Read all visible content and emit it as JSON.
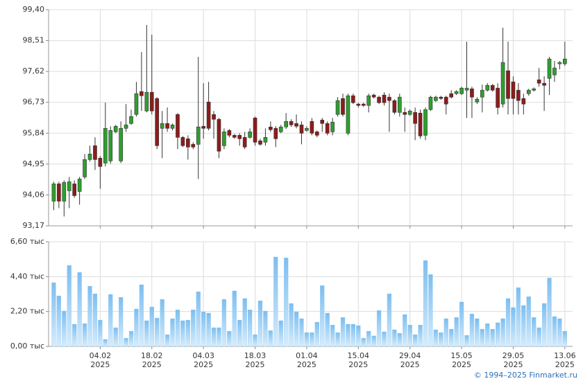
{
  "chart_data": [
    {
      "type": "candlestick",
      "categories": [
        null,
        null,
        null,
        null,
        null,
        null,
        null,
        null,
        null,
        null,
        null,
        null,
        null,
        null,
        null,
        null,
        null,
        null,
        null,
        null,
        null,
        null,
        null,
        null,
        null,
        null,
        null,
        null,
        null,
        null,
        null,
        null,
        null,
        null,
        null,
        null,
        null,
        null,
        null,
        null,
        null,
        null,
        null,
        null,
        null,
        null,
        null,
        null,
        null,
        null,
        null,
        null,
        null,
        null,
        null,
        null,
        null,
        null,
        null,
        null,
        null,
        null,
        null,
        null,
        null,
        null,
        null,
        null,
        null,
        null,
        null,
        null,
        null,
        null,
        null,
        null,
        null,
        null,
        null,
        null,
        null,
        null,
        null,
        null,
        null,
        null,
        null,
        null,
        null,
        null,
        null,
        null,
        null,
        null,
        null,
        null,
        null,
        null,
        null,
        null
      ],
      "open": [
        93.88,
        94.38,
        93.88,
        94.18,
        94.38,
        94.16,
        94.58,
        95.08,
        95.48,
        95.12,
        94.98,
        95.04,
        95.88,
        95.04,
        95.98,
        96.12,
        96.38,
        97.04,
        96.48,
        97.02,
        96.84,
        95.98,
        96.12,
        95.98,
        96.38,
        95.72,
        95.68,
        95.52,
        95.52,
        96.04,
        96.74,
        96.38,
        96.24,
        95.48,
        95.92,
        95.78,
        95.78,
        95.72,
        95.72,
        96.28,
        95.62,
        95.58,
        96.02,
        95.98,
        95.88,
        96.02,
        96.18,
        96.12,
        96.08,
        95.92,
        96.18,
        95.88,
        96.22,
        96.12,
        95.88,
        96.38,
        96.84,
        95.84,
        96.92,
        96.68,
        96.68,
        96.64,
        96.94,
        96.88,
        96.94,
        96.88,
        96.78,
        96.44,
        96.44,
        96.38,
        96.44,
        96.42,
        95.78,
        96.52,
        96.78,
        96.88,
        96.88,
        96.98,
        96.98,
        96.98,
        97.08,
        97.12,
        96.74,
        96.88,
        97.08,
        97.22,
        97.14,
        96.68,
        97.64,
        97.32,
        97.08,
        96.84,
        96.98,
        97.08,
        97.38,
        97.28,
        97.42,
        97.52,
        97.84,
        97.84
      ],
      "high": [
        94.44,
        94.44,
        94.48,
        94.58,
        94.48,
        94.58,
        95.24,
        95.48,
        95.72,
        95.18,
        96.72,
        96.04,
        96.08,
        96.18,
        96.68,
        96.52,
        97.32,
        98.18,
        98.96,
        98.68,
        96.88,
        96.48,
        96.58,
        96.12,
        96.42,
        95.76,
        95.78,
        95.58,
        98.04,
        97.28,
        97.32,
        96.48,
        96.28,
        95.98,
        95.96,
        95.82,
        95.84,
        95.88,
        95.98,
        96.32,
        95.68,
        95.98,
        96.18,
        96.04,
        96.08,
        96.42,
        96.24,
        96.38,
        96.18,
        96.04,
        96.28,
        95.92,
        96.28,
        96.18,
        96.28,
        96.88,
        96.98,
        96.98,
        96.98,
        96.72,
        96.72,
        96.98,
        96.98,
        96.92,
        97.02,
        96.98,
        96.82,
        96.98,
        96.58,
        96.52,
        96.58,
        96.52,
        96.58,
        96.92,
        96.92,
        96.92,
        96.92,
        97.08,
        97.08,
        97.18,
        98.48,
        97.18,
        96.88,
        97.24,
        97.28,
        97.26,
        97.28,
        98.88,
        98.48,
        97.48,
        97.28,
        96.98,
        97.12,
        97.16,
        97.72,
        97.48,
        98.04,
        97.92,
        97.92,
        98.48
      ],
      "low": [
        93.62,
        93.68,
        93.44,
        93.68,
        93.98,
        93.78,
        94.52,
        95.02,
        94.78,
        94.24,
        94.88,
        94.96,
        95.84,
        94.98,
        95.88,
        96.08,
        96.32,
        96.48,
        96.44,
        96.38,
        95.38,
        95.12,
        95.88,
        95.92,
        95.38,
        95.44,
        95.08,
        95.38,
        94.52,
        95.68,
        95.92,
        95.68,
        95.12,
        95.38,
        95.72,
        95.68,
        95.48,
        95.38,
        95.68,
        95.48,
        95.48,
        95.48,
        95.88,
        95.44,
        95.84,
        95.96,
        96.02,
        95.98,
        95.52,
        95.88,
        95.78,
        95.72,
        95.88,
        95.78,
        95.78,
        96.32,
        96.32,
        95.78,
        96.68,
        96.58,
        96.6,
        96.44,
        96.84,
        96.68,
        96.64,
        95.88,
        96.38,
        96.32,
        95.88,
        96.34,
        95.64,
        95.68,
        95.64,
        96.48,
        96.74,
        96.8,
        96.38,
        96.84,
        96.94,
        96.94,
        96.28,
        96.28,
        96.68,
        96.44,
        97.04,
        97.04,
        96.38,
        96.58,
        96.38,
        96.38,
        96.38,
        96.38,
        96.92,
        97.04,
        97.18,
        96.48,
        96.94,
        97.32,
        97.68,
        97.78
      ],
      "close": [
        94.38,
        93.88,
        94.42,
        94.44,
        94.04,
        94.52,
        95.08,
        95.24,
        95.08,
        94.88,
        95.98,
        95.92,
        96.04,
        95.98,
        96.08,
        96.32,
        96.98,
        96.92,
        97.02,
        96.48,
        95.48,
        96.12,
        95.98,
        96.08,
        95.72,
        95.48,
        95.44,
        95.44,
        96.02,
        95.98,
        95.98,
        96.24,
        95.32,
        95.88,
        95.78,
        95.72,
        95.68,
        95.44,
        95.88,
        95.58,
        95.52,
        95.72,
        95.94,
        95.68,
        96.02,
        96.18,
        96.08,
        96.04,
        95.84,
        95.98,
        95.84,
        95.78,
        96.12,
        95.84,
        96.16,
        96.78,
        96.38,
        96.92,
        96.72,
        96.64,
        96.64,
        96.92,
        96.88,
        96.72,
        96.72,
        96.78,
        96.44,
        96.88,
        96.38,
        96.48,
        96.12,
        95.76,
        96.52,
        96.88,
        96.88,
        96.84,
        96.68,
        96.88,
        97.04,
        97.14,
        97.14,
        96.88,
        96.82,
        97.08,
        97.22,
        97.08,
        96.58,
        97.88,
        96.84,
        96.84,
        96.78,
        96.68,
        97.08,
        97.12,
        97.28,
        97.22,
        97.98,
        97.72,
        97.88,
        97.98
      ],
      "up_color": "#2f9e2f",
      "down_color": "#8c1c1c",
      "xlim": [
        -1,
        100.5
      ],
      "xticks": [
        9,
        19,
        29,
        39,
        49,
        59,
        69,
        79,
        89,
        99
      ],
      "ylim": [
        93.17,
        99.4
      ],
      "yticks": [
        {
          "value": 93.17,
          "label": "93,17"
        },
        {
          "value": 94.06,
          "label": "94,06"
        },
        {
          "value": 94.95,
          "label": "94,95"
        },
        {
          "value": 95.84,
          "label": "95,84"
        },
        {
          "value": 96.73,
          "label": "96,73"
        },
        {
          "value": 97.62,
          "label": "97,62"
        },
        {
          "value": 98.51,
          "label": "98,51"
        },
        {
          "value": 99.4,
          "label": "99,40"
        }
      ],
      "grid": true
    },
    {
      "type": "bar",
      "categories": [
        null,
        null,
        null,
        null,
        null,
        null,
        null,
        null,
        null,
        null,
        null,
        null,
        null,
        null,
        null,
        null,
        null,
        null,
        null,
        null,
        null,
        null,
        null,
        null,
        null,
        null,
        null,
        null,
        null,
        null,
        null,
        null,
        null,
        null,
        null,
        null,
        null,
        null,
        null,
        null,
        null,
        null,
        null,
        null,
        null,
        null,
        null,
        null,
        null,
        null,
        null,
        null,
        null,
        null,
        null,
        null,
        null,
        null,
        null,
        null,
        null,
        null,
        null,
        null,
        null,
        null,
        null,
        null,
        null,
        null,
        null,
        null,
        null,
        null,
        null,
        null,
        null,
        null,
        null,
        null,
        null,
        null,
        null,
        null,
        null,
        null,
        null,
        null,
        null,
        null,
        null,
        null,
        null,
        null,
        null,
        null,
        null,
        null,
        null,
        null
      ],
      "values": [
        4.02,
        3.19,
        2.23,
        5.11,
        1.4,
        4.67,
        1.44,
        3.8,
        3.32,
        1.66,
        0.44,
        3.28,
        1.18,
        3.1,
        0.52,
        0.96,
        2.36,
        3.89,
        1.62,
        2.49,
        1.79,
        2.97,
        0.74,
        1.75,
        2.31,
        1.62,
        1.66,
        2.31,
        3.45,
        2.18,
        2.1,
        1.18,
        1.18,
        2.97,
        0.96,
        3.5,
        1.66,
        3.02,
        2.31,
        0.74,
        2.88,
        2.23,
        1.0,
        5.64,
        1.62,
        5.59,
        2.71,
        2.18,
        1.75,
        0.87,
        0.87,
        1.53,
        3.84,
        2.1,
        1.35,
        0.87,
        1.83,
        1.4,
        1.4,
        1.31,
        0.52,
        0.96,
        0.66,
        2.27,
        0.92,
        3.32,
        1.05,
        0.83,
        2.01,
        1.35,
        0.74,
        1.35,
        5.42,
        4.54,
        1.05,
        0.87,
        1.75,
        1.09,
        1.83,
        2.8,
        0.7,
        2.05,
        1.75,
        1.09,
        1.44,
        1.09,
        1.49,
        1.75,
        3.02,
        2.45,
        3.71,
        2.58,
        3.14,
        1.83,
        1.18,
        2.71,
        4.32,
        1.88,
        1.75,
        0.96
      ],
      "color": "#8ec8f2",
      "xlim": [
        -1,
        100.5
      ],
      "xticks": [
        {
          "value": 9,
          "label": "04.02\n2025"
        },
        {
          "value": 19,
          "label": "18.02\n2025"
        },
        {
          "value": 29,
          "label": "04.03\n2025"
        },
        {
          "value": 39,
          "label": "18.03\n2025"
        },
        {
          "value": 49,
          "label": "01.04\n2025"
        },
        {
          "value": 59,
          "label": "15.04\n2025"
        },
        {
          "value": 69,
          "label": "29.04\n2025"
        },
        {
          "value": 79,
          "label": "15.05\n2025"
        },
        {
          "value": 89,
          "label": "29.05\n2025"
        },
        {
          "value": 99,
          "label": "13.06\n2025"
        }
      ],
      "ylim": [
        0,
        6.6
      ],
      "yticks": [
        {
          "value": 0,
          "label": "0,00 тыс"
        },
        {
          "value": 2.2,
          "label": "2,20 тыс"
        },
        {
          "value": 4.4,
          "label": "4,40 тыс"
        },
        {
          "value": 6.6,
          "label": "6,60 тыс"
        }
      ],
      "grid": true
    }
  ],
  "credit": "© 1994–2025 Finmarket.ru"
}
